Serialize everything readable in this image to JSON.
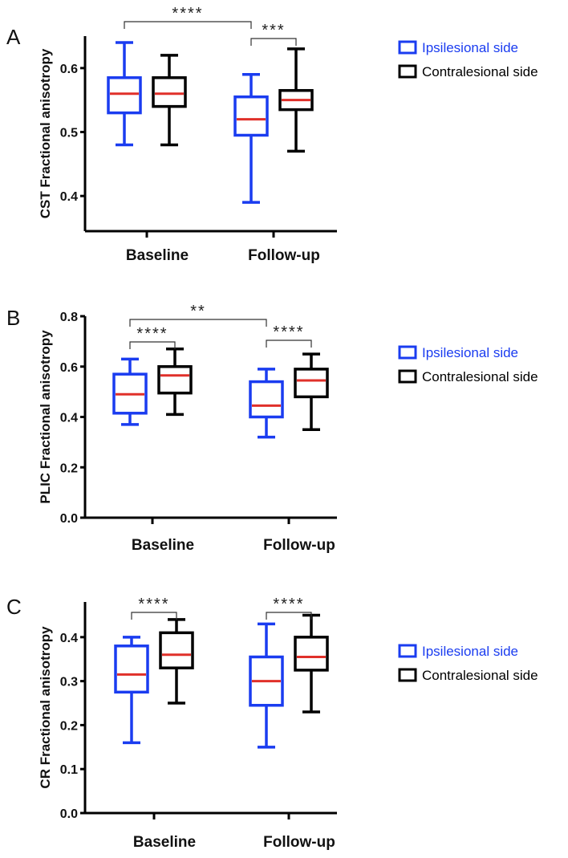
{
  "colors": {
    "ipsilesional": "#1a3cf0",
    "contralesional": "#000000",
    "median": "#e0302a"
  },
  "chart_data": [
    {
      "type": "box",
      "panel": "A",
      "ylabel": "CST Fractional anisotropy",
      "ylim": [
        0.345,
        0.65
      ],
      "yticks": [
        {
          "v": 0.4,
          "label": "0.4"
        },
        {
          "v": 0.5,
          "label": "0.5"
        },
        {
          "v": 0.6,
          "label": "0.6"
        }
      ],
      "categories": [
        "Baseline",
        "Follow-up"
      ],
      "legend": [
        "Ipsilesional side",
        "Contralesional side"
      ],
      "series": [
        {
          "name": "Ipsilesional side",
          "boxes": [
            {
              "min": 0.48,
              "q1": 0.53,
              "median": 0.56,
              "q3": 0.585,
              "max": 0.64
            },
            {
              "min": 0.39,
              "q1": 0.495,
              "median": 0.52,
              "q3": 0.555,
              "max": 0.59
            }
          ]
        },
        {
          "name": "Contralesional side",
          "boxes": [
            {
              "min": 0.48,
              "q1": 0.54,
              "median": 0.56,
              "q3": 0.585,
              "max": 0.62
            },
            {
              "min": 0.47,
              "q1": 0.535,
              "median": 0.55,
              "q3": 0.565,
              "max": 0.63
            }
          ]
        }
      ],
      "significance": [
        {
          "from": [
            0,
            0
          ],
          "to": [
            1,
            0
          ],
          "label": "****"
        },
        {
          "from": [
            1,
            0
          ],
          "to": [
            1,
            1
          ],
          "label": "***"
        }
      ]
    },
    {
      "type": "box",
      "panel": "B",
      "ylabel": "PLIC Fractional anisotropy",
      "ylim": [
        0.0,
        0.8
      ],
      "yticks": [
        {
          "v": 0.0,
          "label": "0.0"
        },
        {
          "v": 0.2,
          "label": "0.2"
        },
        {
          "v": 0.4,
          "label": "0.4"
        },
        {
          "v": 0.6,
          "label": "0.6"
        },
        {
          "v": 0.8,
          "label": "0.8"
        }
      ],
      "categories": [
        "Baseline",
        "Follow-up"
      ],
      "legend": [
        "Ipsilesional side",
        "Contralesional side"
      ],
      "series": [
        {
          "name": "Ipsilesional side",
          "boxes": [
            {
              "min": 0.37,
              "q1": 0.415,
              "median": 0.49,
              "q3": 0.57,
              "max": 0.63
            },
            {
              "min": 0.32,
              "q1": 0.4,
              "median": 0.445,
              "q3": 0.54,
              "max": 0.59
            }
          ]
        },
        {
          "name": "Contralesional side",
          "boxes": [
            {
              "min": 0.41,
              "q1": 0.495,
              "median": 0.565,
              "q3": 0.6,
              "max": 0.67
            },
            {
              "min": 0.35,
              "q1": 0.48,
              "median": 0.545,
              "q3": 0.59,
              "max": 0.65
            }
          ]
        }
      ],
      "significance": [
        {
          "from": [
            0,
            0
          ],
          "to": [
            1,
            0
          ],
          "label": "**"
        },
        {
          "from": [
            0,
            0
          ],
          "to": [
            0,
            1
          ],
          "label": "****"
        },
        {
          "from": [
            1,
            0
          ],
          "to": [
            1,
            1
          ],
          "label": "****"
        }
      ]
    },
    {
      "type": "box",
      "panel": "C",
      "ylabel": "CR Fractional anisotropy",
      "ylim": [
        0.0,
        0.48
      ],
      "yticks": [
        {
          "v": 0.0,
          "label": "0.0"
        },
        {
          "v": 0.1,
          "label": "0.1"
        },
        {
          "v": 0.2,
          "label": "0.2"
        },
        {
          "v": 0.3,
          "label": "0.3"
        },
        {
          "v": 0.4,
          "label": "0.4"
        }
      ],
      "categories": [
        "Baseline",
        "Follow-up"
      ],
      "legend": [
        "Ipsilesional side",
        "Contralesional side"
      ],
      "series": [
        {
          "name": "Ipsilesional side",
          "boxes": [
            {
              "min": 0.16,
              "q1": 0.275,
              "median": 0.315,
              "q3": 0.38,
              "max": 0.4
            },
            {
              "min": 0.15,
              "q1": 0.245,
              "median": 0.3,
              "q3": 0.355,
              "max": 0.43
            }
          ]
        },
        {
          "name": "Contralesional side",
          "boxes": [
            {
              "min": 0.25,
              "q1": 0.33,
              "median": 0.36,
              "q3": 0.41,
              "max": 0.44
            },
            {
              "min": 0.23,
              "q1": 0.325,
              "median": 0.355,
              "q3": 0.4,
              "max": 0.45
            }
          ]
        }
      ],
      "significance": [
        {
          "from": [
            0,
            0
          ],
          "to": [
            0,
            1
          ],
          "label": "****"
        },
        {
          "from": [
            1,
            0
          ],
          "to": [
            1,
            1
          ],
          "label": "****"
        }
      ]
    }
  ]
}
